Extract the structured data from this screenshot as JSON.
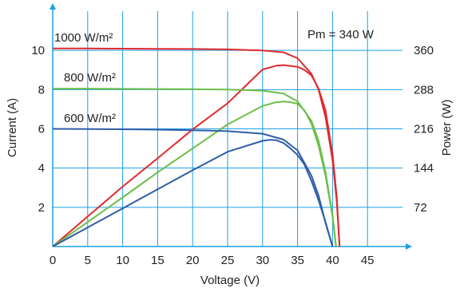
{
  "chart_data": {
    "type": "line",
    "title": "",
    "xlabel": "Voltage (V)",
    "ylabel": "Current (A)",
    "y2label": "Power (W)",
    "xlim": [
      0,
      50
    ],
    "ylim": [
      0,
      12
    ],
    "y2lim": [
      0,
      432
    ],
    "grid": true,
    "x_ticks": [
      "0",
      "5",
      "10",
      "15",
      "20",
      "25",
      "30",
      "35",
      "40",
      "45"
    ],
    "y_ticks": [
      "2",
      "4",
      "6",
      "8",
      "10"
    ],
    "y2_ticks": [
      "72",
      "144",
      "216",
      "288",
      "360"
    ],
    "annotation": "Pm = 340 W",
    "colors": {
      "grid": "#1ca0e6",
      "s1000": "#e02a2e",
      "s800": "#6cbf4a",
      "s600": "#2f5da8"
    },
    "series": [
      {
        "name": "1000 W/m²",
        "color": "#e02a2e",
        "iv": {
          "x": [
            0,
            5,
            10,
            15,
            20,
            25,
            30,
            33,
            35,
            37,
            38,
            39,
            40,
            40.6,
            41
          ],
          "y": [
            10.1,
            10.1,
            10.09,
            10.08,
            10.07,
            10.05,
            10.0,
            9.9,
            9.6,
            8.8,
            8.0,
            6.6,
            4.4,
            2.3,
            0
          ]
        },
        "pv": {
          "x": [
            0,
            5,
            10,
            15,
            20,
            25,
            30,
            32,
            33,
            35,
            36,
            37,
            38,
            39,
            40,
            40.6,
            41
          ],
          "y": [
            0,
            55,
            110,
            162,
            215,
            263,
            325,
            332,
            333,
            330,
            324,
            314,
            290,
            250,
            170,
            90,
            0
          ]
        }
      },
      {
        "name": "800 W/m²",
        "color": "#6cbf4a",
        "iv": {
          "x": [
            0,
            5,
            10,
            15,
            20,
            25,
            30,
            33,
            35,
            37,
            38,
            39,
            40,
            40.5
          ],
          "y": [
            8.05,
            8.05,
            8.04,
            8.03,
            8.02,
            8.0,
            7.95,
            7.8,
            7.4,
            6.4,
            5.4,
            3.8,
            1.6,
            0
          ]
        },
        "pv": {
          "x": [
            0,
            5,
            10,
            15,
            20,
            25,
            30,
            32,
            33,
            34,
            35,
            36,
            37,
            38,
            39,
            40,
            40.5
          ],
          "y": [
            0,
            45,
            90,
            136,
            180,
            224,
            258,
            265,
            266,
            265,
            262,
            250,
            225,
            185,
            130,
            55,
            0
          ]
        }
      },
      {
        "name": "600 W/m²",
        "color": "#2f5da8",
        "iv": {
          "x": [
            0,
            5,
            10,
            15,
            20,
            25,
            30,
            33,
            35,
            37,
            38,
            39,
            40
          ],
          "y": [
            6.0,
            5.99,
            5.98,
            5.96,
            5.93,
            5.88,
            5.75,
            5.45,
            4.9,
            3.6,
            2.6,
            1.2,
            0
          ]
        },
        "pv": {
          "x": [
            0,
            5,
            10,
            15,
            20,
            25,
            30,
            31,
            32,
            33,
            34,
            35,
            36,
            37,
            38,
            39,
            40
          ],
          "y": [
            0,
            35,
            70,
            105,
            140,
            174,
            194,
            196,
            195,
            190,
            180,
            168,
            150,
            120,
            85,
            45,
            0
          ]
        }
      }
    ]
  }
}
